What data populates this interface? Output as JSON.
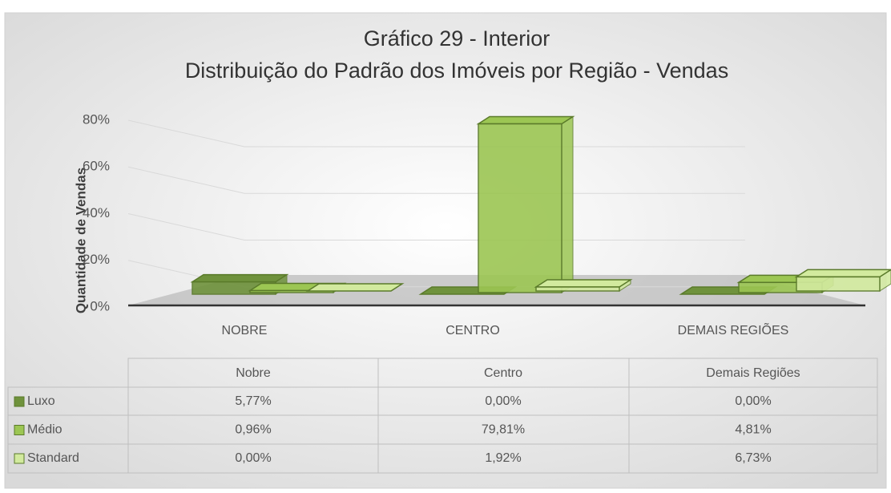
{
  "chart_data": {
    "type": "bar",
    "title": "Gráfico 29 - Interior",
    "subtitle": "Distribuição do Padrão dos Imóveis por Região - Vendas",
    "y_axis_label": "Quantidade de Vendas",
    "categories": [
      "NOBRE",
      "CENTRO",
      "DEMAIS REGIÕES"
    ],
    "table_categories": [
      "Nobre",
      "Centro",
      "Demais Regiões"
    ],
    "series": [
      {
        "name": "Luxo",
        "color": "#6f923c",
        "values": [
          5.77,
          0,
          0
        ],
        "value_labels": [
          "5,77%",
          "0,00%",
          "0,00%"
        ]
      },
      {
        "name": "Médio",
        "color": "#9cc653",
        "values": [
          0.96,
          79.81,
          4.81
        ],
        "value_labels": [
          "0,96%",
          "79,81%",
          "4,81%"
        ]
      },
      {
        "name": "Standard",
        "color": "#d2ea9e",
        "values": [
          0,
          1.92,
          6.73
        ],
        "value_labels": [
          "0,00%",
          "1,92%",
          "6,73%"
        ]
      }
    ],
    "ylim": [
      0,
      80
    ],
    "yticks": [
      {
        "value": 0,
        "label": "0%"
      },
      {
        "value": 20,
        "label": "20%"
      },
      {
        "value": 40,
        "label": "40%"
      },
      {
        "value": 60,
        "label": "60%"
      },
      {
        "value": 80,
        "label": "80%"
      }
    ],
    "grid": true
  }
}
